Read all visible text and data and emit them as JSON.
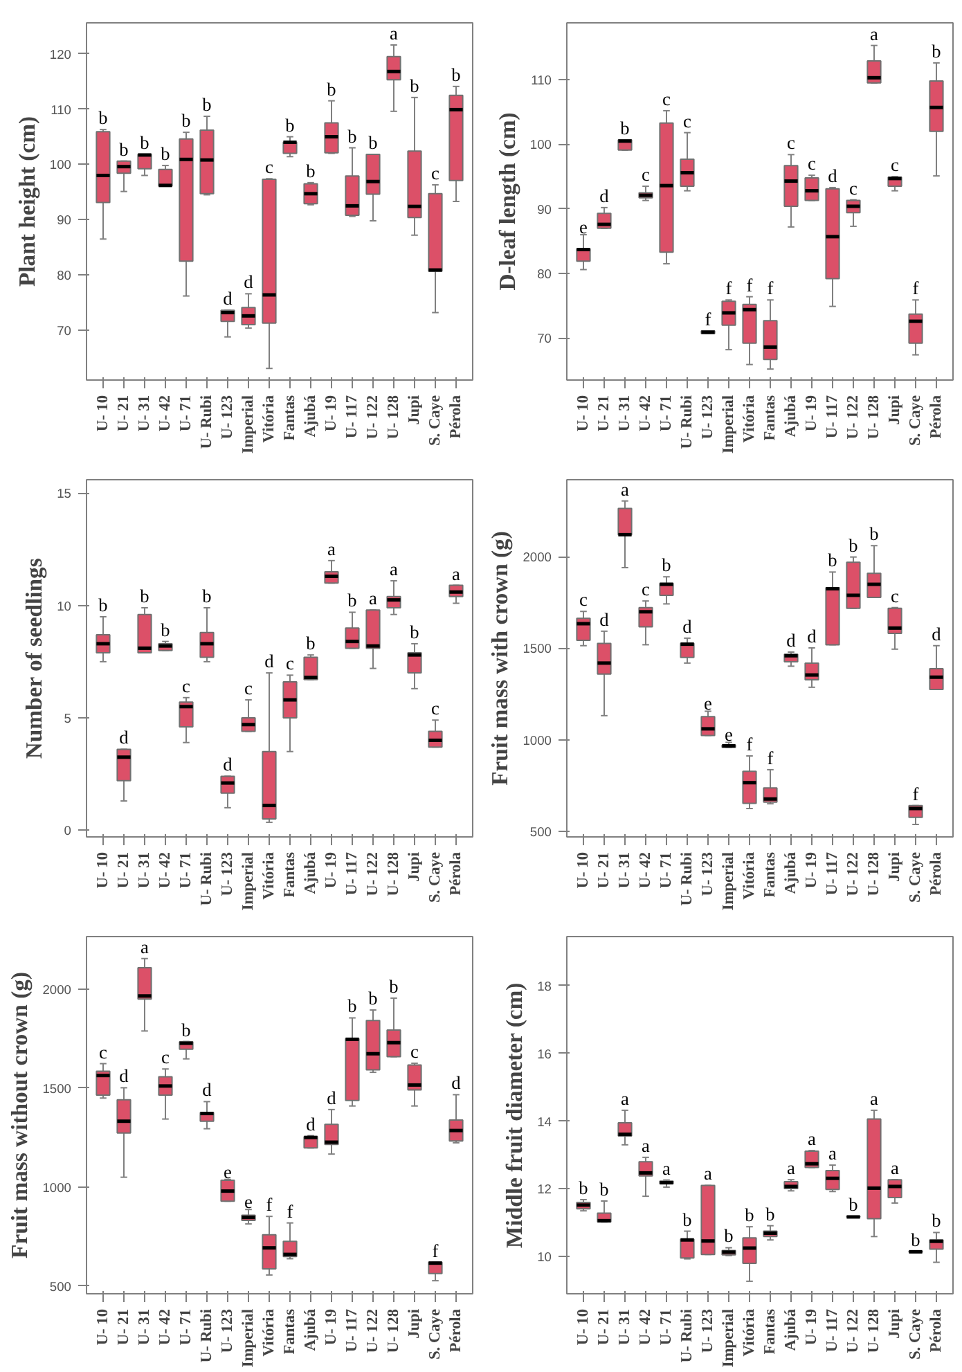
{
  "chart_data": [
    {
      "type": "box",
      "ylabel": "Plant height (cm)",
      "categories": [
        "U- 10",
        "U- 21",
        "U- 31",
        "U- 42",
        "U- 71",
        "U- Rubi",
        "U- 123",
        "Imperial",
        "Vitória",
        "Fantas",
        "Ajubá",
        "U- 19",
        "U- 117",
        "U- 122",
        "U- 128",
        "Jupi",
        "S. Caye",
        "Pérola"
      ],
      "ylim": [
        61,
        125.6
      ],
      "yticks": [
        70,
        80,
        90,
        100,
        110,
        120
      ],
      "annotations": [
        "b",
        "b",
        "b",
        "b",
        "b",
        "b",
        "d",
        "d",
        "c",
        "b",
        "b",
        "b",
        "b",
        "b",
        "a",
        "b",
        "c",
        "b"
      ],
      "series": [
        {
          "color": "#dc5068",
          "boxes": [
            {
              "low": 86.5,
              "q1": 93.1,
              "median": 98,
              "q3": 105.9,
              "high": 106.3
            },
            {
              "low": 95.1,
              "q1": 98.4,
              "median": 99.6,
              "q3": 100.6,
              "high": 100.6
            },
            {
              "low": 98,
              "q1": 99.2,
              "median": 101.7,
              "q3": 101.8,
              "high": 101.8
            },
            {
              "low": 96.1,
              "q1": 96.1,
              "median": 96.2,
              "q3": 99.1,
              "high": 99.8
            },
            {
              "low": 76.2,
              "q1": 82.5,
              "median": 100.9,
              "q3": 104.6,
              "high": 105.8
            },
            {
              "low": 94.5,
              "q1": 94.7,
              "median": 100.8,
              "q3": 106.2,
              "high": 108.7
            },
            {
              "low": 68.8,
              "q1": 71.6,
              "median": 73.2,
              "q3": 73.6,
              "high": 73.6
            },
            {
              "low": 70.4,
              "q1": 71,
              "median": 72.6,
              "q3": 74.1,
              "high": 76.6
            },
            {
              "low": 63.1,
              "q1": 71.3,
              "median": 76.4,
              "q3": 97.3,
              "high": 97.4
            },
            {
              "low": 101.4,
              "q1": 102,
              "median": 104,
              "q3": 104,
              "high": 105
            },
            {
              "low": 92.7,
              "q1": 92.9,
              "median": 94.7,
              "q3": 96.5,
              "high": 96.7
            },
            {
              "low": 102,
              "q1": 102.1,
              "median": 105,
              "q3": 107.5,
              "high": 111.5
            },
            {
              "low": 90.6,
              "q1": 90.8,
              "median": 92.5,
              "q3": 97.9,
              "high": 103
            },
            {
              "low": 89.8,
              "q1": 94.6,
              "median": 96.9,
              "q3": 101.8,
              "high": 101.8
            },
            {
              "low": 109.6,
              "q1": 115.3,
              "median": 116.8,
              "q3": 119.5,
              "high": 121.6
            },
            {
              "low": 87.2,
              "q1": 90.4,
              "median": 92.4,
              "q3": 102.4,
              "high": 112.1
            },
            {
              "low": 73.2,
              "q1": 80.7,
              "median": 80.9,
              "q3": 94.7,
              "high": 96.3
            },
            {
              "low": 93.3,
              "q1": 97.1,
              "median": 109.9,
              "q3": 112.5,
              "high": 114.1
            }
          ]
        }
      ]
    },
    {
      "type": "box",
      "ylabel": "D-leaf length (cm)",
      "categories": [
        "U- 10",
        "U- 21",
        "U- 31",
        "U- 42",
        "U- 71",
        "U- Rubi",
        "U- 123",
        "Imperial",
        "Vitória",
        "Fantas",
        "Ajubá",
        "U- 19",
        "U- 117",
        "U- 122",
        "U- 128",
        "Jupi",
        "S. Caye",
        "Pérola"
      ],
      "ylim": [
        63.5,
        118.8
      ],
      "yticks": [
        70,
        80,
        90,
        100,
        110
      ],
      "annotations": [
        "e",
        "d",
        "b",
        "c",
        "c",
        "c",
        "f",
        "f",
        "f",
        "f",
        "c",
        "c",
        "d",
        "c",
        "a",
        "c",
        "f",
        "b"
      ],
      "series": [
        {
          "color": "#dc5068",
          "boxes": [
            {
              "low": 80.6,
              "q1": 81.9,
              "median": 83.7,
              "q3": 83.8,
              "high": 86
            },
            {
              "low": 87,
              "q1": 87,
              "median": 87.6,
              "q3": 89.3,
              "high": 90.2
            },
            {
              "low": 99.1,
              "q1": 99.1,
              "median": 100.5,
              "q3": 100.7,
              "high": 100.7
            },
            {
              "low": 91.3,
              "q1": 91.7,
              "median": 92.1,
              "q3": 92.5,
              "high": 93.5
            },
            {
              "low": 81.5,
              "q1": 83.3,
              "median": 93.6,
              "q3": 103.3,
              "high": 105.2
            },
            {
              "low": 92.8,
              "q1": 93.5,
              "median": 95.6,
              "q3": 97.7,
              "high": 101.8
            },
            {
              "low": 70.7,
              "q1": 70.7,
              "median": 70.9,
              "q3": 71.1,
              "high": 71.1
            },
            {
              "low": 68.2,
              "q1": 72,
              "median": 73.9,
              "q3": 75.7,
              "high": 75.9
            },
            {
              "low": 65.9,
              "q1": 69.2,
              "median": 74.4,
              "q3": 75.2,
              "high": 76.4
            },
            {
              "low": 65.2,
              "q1": 66.7,
              "median": 68.6,
              "q3": 72.7,
              "high": 75.9
            },
            {
              "low": 87.2,
              "q1": 90.4,
              "median": 94.3,
              "q3": 96.7,
              "high": 98.4
            },
            {
              "low": 91.3,
              "q1": 91.3,
              "median": 92.8,
              "q3": 94.8,
              "high": 95.2
            },
            {
              "low": 74.9,
              "q1": 79.2,
              "median": 85.7,
              "q3": 93.1,
              "high": 93.3
            },
            {
              "low": 87.3,
              "q1": 89.4,
              "median": 90.4,
              "q3": 91.3,
              "high": 91.4
            },
            {
              "low": 109.5,
              "q1": 109.5,
              "median": 110.3,
              "q3": 112.9,
              "high": 115.3
            },
            {
              "low": 92.8,
              "q1": 93.5,
              "median": 94.7,
              "q3": 94.9,
              "high": 95
            },
            {
              "low": 67.4,
              "q1": 69.2,
              "median": 72.6,
              "q3": 73.7,
              "high": 75.9
            },
            {
              "low": 95.1,
              "q1": 102,
              "median": 105.7,
              "q3": 109.8,
              "high": 112.6
            }
          ]
        }
      ]
    },
    {
      "type": "box",
      "ylabel": "Number of seedlings",
      "categories": [
        "U- 10",
        "U- 21",
        "U- 31",
        "U- 42",
        "U- 71",
        "U- Rubi",
        "U- 123",
        "Imperial",
        "Vitória",
        "Fantas",
        "Ajubá",
        "U- 19",
        "U- 117",
        "U- 122",
        "U- 128",
        "Jupi",
        "S. Caye",
        "Pérola"
      ],
      "ylim": [
        -0.3,
        15.6
      ],
      "yticks": [
        0,
        5,
        10,
        15
      ],
      "annotations": [
        "b",
        "d",
        "b",
        "b",
        "c",
        "b",
        "d",
        "c",
        "d",
        "c",
        "b",
        "a",
        "b",
        "a",
        "a",
        "b",
        "c",
        "a"
      ],
      "series": [
        {
          "color": "#dc5068",
          "boxes": [
            {
              "low": 7.5,
              "q1": 7.9,
              "median": 8.3,
              "q3": 8.7,
              "high": 9.5
            },
            {
              "low": 1.3,
              "q1": 2.2,
              "median": 3.25,
              "q3": 3.6,
              "high": 3.6
            },
            {
              "low": 7.9,
              "q1": 7.9,
              "median": 8.1,
              "q3": 9.6,
              "high": 9.9
            },
            {
              "low": 8,
              "q1": 8,
              "median": 8.2,
              "q3": 8.3,
              "high": 8.4
            },
            {
              "low": 3.9,
              "q1": 4.6,
              "median": 5.5,
              "q3": 5.7,
              "high": 5.9
            },
            {
              "low": 7.5,
              "q1": 7.7,
              "median": 8.3,
              "q3": 8.8,
              "high": 9.9
            },
            {
              "low": 1,
              "q1": 1.65,
              "median": 2.1,
              "q3": 2.4,
              "high": 2.4
            },
            {
              "low": 4.4,
              "q1": 4.4,
              "median": 4.7,
              "q3": 5,
              "high": 5.8
            },
            {
              "low": 0.35,
              "q1": 0.5,
              "median": 1.1,
              "q3": 3.5,
              "high": 7
            },
            {
              "low": 3.5,
              "q1": 5,
              "median": 5.8,
              "q3": 6.6,
              "high": 6.9
            },
            {
              "low": 6.7,
              "q1": 6.7,
              "median": 6.8,
              "q3": 7.7,
              "high": 7.8
            },
            {
              "low": 11,
              "q1": 11,
              "median": 11.3,
              "q3": 11.5,
              "high": 12
            },
            {
              "low": 8.1,
              "q1": 8.1,
              "median": 8.4,
              "q3": 9,
              "high": 9.7
            },
            {
              "low": 7.2,
              "q1": 8.1,
              "median": 8.2,
              "q3": 9.8,
              "high": 9.8
            },
            {
              "low": 9.6,
              "q1": 9.9,
              "median": 10.25,
              "q3": 10.4,
              "high": 11.1
            },
            {
              "low": 6.3,
              "q1": 7,
              "median": 7.8,
              "q3": 7.9,
              "high": 8.3
            },
            {
              "low": 3.7,
              "q1": 3.7,
              "median": 4,
              "q3": 4.4,
              "high": 4.9
            },
            {
              "low": 10.1,
              "q1": 10.4,
              "median": 10.6,
              "q3": 10.9,
              "high": 10.9
            }
          ]
        }
      ]
    },
    {
      "type": "box",
      "ylabel": "Fruit mass with crown (g)",
      "categories": [
        "U- 10",
        "U- 21",
        "U- 31",
        "U- 42",
        "U- 71",
        "U- Rubi",
        "U- 123",
        "Imperial",
        "Vitória",
        "Fantas",
        "Ajubá",
        "U- 19",
        "U- 117",
        "U- 122",
        "U- 128",
        "Jupi",
        "S. Caye",
        "Pérola"
      ],
      "ylim": [
        470,
        2420
      ],
      "yticks": [
        500,
        1000,
        1500,
        2000
      ],
      "annotations": [
        "c",
        "d",
        "a",
        "c",
        "b",
        "d",
        "e",
        "e",
        "f",
        "f",
        "d",
        "d",
        "b",
        "b",
        "b",
        "c",
        "f",
        "d"
      ],
      "series": [
        {
          "color": "#dc5068",
          "boxes": [
            {
              "low": 1514,
              "q1": 1543,
              "median": 1634,
              "q3": 1663,
              "high": 1701
            },
            {
              "low": 1132,
              "q1": 1359,
              "median": 1419,
              "q3": 1526,
              "high": 1593
            },
            {
              "low": 1940,
              "q1": 2120,
              "median": 2120,
              "q3": 2263,
              "high": 2304
            },
            {
              "low": 1519,
              "q1": 1617,
              "median": 1699,
              "q3": 1722,
              "high": 1758
            },
            {
              "low": 1742,
              "q1": 1789,
              "median": 1849,
              "q3": 1854,
              "high": 1890
            },
            {
              "low": 1419,
              "q1": 1450,
              "median": 1522,
              "q3": 1526,
              "high": 1555
            },
            {
              "low": 1024,
              "q1": 1024,
              "median": 1060,
              "q3": 1127,
              "high": 1156
            },
            {
              "low": 959,
              "q1": 959,
              "median": 967,
              "q3": 971,
              "high": 986
            },
            {
              "low": 625,
              "q1": 653,
              "median": 766,
              "q3": 828,
              "high": 912
            },
            {
              "low": 651,
              "q1": 660,
              "median": 677,
              "q3": 737,
              "high": 837
            },
            {
              "low": 1402,
              "q1": 1426,
              "median": 1459,
              "q3": 1467,
              "high": 1479
            },
            {
              "low": 1287,
              "q1": 1328,
              "median": 1354,
              "q3": 1419,
              "high": 1502
            },
            {
              "low": 1519,
              "q1": 1519,
              "median": 1825,
              "q3": 1830,
              "high": 1916
            },
            {
              "low": 1718,
              "q1": 1718,
              "median": 1789,
              "q3": 1969,
              "high": 1998
            },
            {
              "low": 1778,
              "q1": 1778,
              "median": 1849,
              "q3": 1909,
              "high": 2060
            },
            {
              "low": 1495,
              "q1": 1581,
              "median": 1610,
              "q3": 1718,
              "high": 1722
            },
            {
              "low": 538,
              "q1": 577,
              "median": 625,
              "q3": 641,
              "high": 641
            },
            {
              "low": 1275,
              "q1": 1275,
              "median": 1342,
              "q3": 1388,
              "high": 1514
            }
          ]
        }
      ]
    },
    {
      "type": "box",
      "ylabel": "Fruit mass without crown (g)",
      "categories": [
        "U- 10",
        "U- 21",
        "U- 31",
        "U- 42",
        "U- 71",
        "U- Rubi",
        "U- 123",
        "Imperial",
        "Vitória",
        "Fantas",
        "Ajubá",
        "U- 19",
        "U- 117",
        "U- 122",
        "U- 128",
        "Jupi",
        "S. Caye",
        "Pérola"
      ],
      "ylim": [
        460,
        2265
      ],
      "yticks": [
        500,
        1000,
        1500,
        2000
      ],
      "annotations": [
        "c",
        "d",
        "a",
        "c",
        "b",
        "d",
        "e",
        "e",
        "f",
        "f",
        "d",
        "d",
        "b",
        "b",
        "b",
        "c",
        "f",
        "d"
      ],
      "series": [
        {
          "color": "#dc5068",
          "boxes": [
            {
              "low": 1449,
              "q1": 1464,
              "median": 1563,
              "q3": 1585,
              "high": 1623
            },
            {
              "low": 1049,
              "q1": 1272,
              "median": 1332,
              "q3": 1440,
              "high": 1501
            },
            {
              "low": 1788,
              "q1": 1949,
              "median": 1965,
              "q3": 2108,
              "high": 2154
            },
            {
              "low": 1343,
              "q1": 1464,
              "median": 1510,
              "q3": 1557,
              "high": 1596
            },
            {
              "low": 1647,
              "q1": 1696,
              "median": 1726,
              "q3": 1733,
              "high": 1735
            },
            {
              "low": 1294,
              "q1": 1332,
              "median": 1371,
              "q3": 1376,
              "high": 1431
            },
            {
              "low": 928,
              "q1": 928,
              "median": 979,
              "q3": 1034,
              "high": 1038
            },
            {
              "low": 813,
              "q1": 831,
              "median": 846,
              "q3": 857,
              "high": 886
            },
            {
              "low": 555,
              "q1": 586,
              "median": 692,
              "q3": 758,
              "high": 851
            },
            {
              "low": 637,
              "q1": 648,
              "median": 659,
              "q3": 725,
              "high": 818
            },
            {
              "low": 1197,
              "q1": 1197,
              "median": 1250,
              "q3": 1254,
              "high": 1259
            },
            {
              "low": 1166,
              "q1": 1215,
              "median": 1226,
              "q3": 1316,
              "high": 1391
            },
            {
              "low": 1409,
              "q1": 1437,
              "median": 1746,
              "q3": 1749,
              "high": 1854
            },
            {
              "low": 1579,
              "q1": 1592,
              "median": 1673,
              "q3": 1841,
              "high": 1894
            },
            {
              "low": 1658,
              "q1": 1658,
              "median": 1729,
              "q3": 1793,
              "high": 1954
            },
            {
              "low": 1409,
              "q1": 1490,
              "median": 1515,
              "q3": 1616,
              "high": 1625
            },
            {
              "low": 526,
              "q1": 562,
              "median": 615,
              "q3": 619,
              "high": 619
            },
            {
              "low": 1223,
              "q1": 1232,
              "median": 1285,
              "q3": 1338,
              "high": 1466
            }
          ]
        }
      ]
    },
    {
      "type": "box",
      "ylabel": "Middle fruit diameter (cm)",
      "categories": [
        "U- 10",
        "U- 21",
        "U- 31",
        "U- 42",
        "U- 71",
        "U- Rubi",
        "U- 123",
        "Imperial",
        "Vitória",
        "Fantas",
        "Ajubá",
        "U- 19",
        "U- 117",
        "U- 122",
        "U- 128",
        "Jupi",
        "S. Caye",
        "Pérola"
      ],
      "ylim": [
        8.9,
        19.45
      ],
      "yticks": [
        10,
        12,
        14,
        16,
        18
      ],
      "annotations": [
        "b",
        "b",
        "a",
        "a",
        "a",
        "b",
        "a",
        "b",
        "b",
        "b",
        "a",
        "a",
        "a",
        "b",
        "a",
        "a",
        "b",
        "b"
      ],
      "series": [
        {
          "color": "#dc5068",
          "boxes": [
            {
              "low": 11.35,
              "q1": 11.41,
              "median": 11.52,
              "q3": 11.6,
              "high": 11.68
            },
            {
              "low": 11.02,
              "q1": 11.02,
              "median": 11.06,
              "q3": 11.28,
              "high": 11.64
            },
            {
              "low": 13.3,
              "q1": 13.56,
              "median": 13.61,
              "q3": 13.95,
              "high": 14.32
            },
            {
              "low": 11.78,
              "q1": 12.38,
              "median": 12.47,
              "q3": 12.8,
              "high": 12.93
            },
            {
              "low": 12.05,
              "q1": 12.15,
              "median": 12.18,
              "q3": 12.23,
              "high": 12.26
            },
            {
              "low": 9.93,
              "q1": 9.96,
              "median": 10.49,
              "q3": 10.51,
              "high": 10.75
            },
            {
              "low": 10.06,
              "q1": 10.06,
              "median": 10.46,
              "q3": 12.1,
              "high": 12.1
            },
            {
              "low": 10.03,
              "q1": 10.05,
              "median": 10.13,
              "q3": 10.18,
              "high": 10.26
            },
            {
              "low": 9.27,
              "q1": 9.8,
              "median": 10.25,
              "q3": 10.55,
              "high": 10.88
            },
            {
              "low": 10.49,
              "q1": 10.59,
              "median": 10.69,
              "q3": 10.75,
              "high": 10.91
            },
            {
              "low": 11.94,
              "q1": 12.01,
              "median": 12.07,
              "q3": 12.21,
              "high": 12.27
            },
            {
              "low": 12.63,
              "q1": 12.63,
              "median": 12.74,
              "q3": 13.11,
              "high": 13.13
            },
            {
              "low": 11.92,
              "q1": 11.98,
              "median": 12.31,
              "q3": 12.54,
              "high": 12.7
            },
            {
              "low": 11.16,
              "q1": 11.17,
              "median": 11.17,
              "q3": 11.18,
              "high": 11.19
            },
            {
              "low": 10.59,
              "q1": 11.12,
              "median": 12.02,
              "q3": 14.06,
              "high": 14.32
            },
            {
              "low": 11.58,
              "q1": 11.74,
              "median": 12.07,
              "q3": 12.27,
              "high": 12.27
            },
            {
              "low": 10.13,
              "q1": 10.13,
              "median": 10.14,
              "q3": 10.15,
              "high": 10.15
            },
            {
              "low": 9.83,
              "q1": 10.22,
              "median": 10.45,
              "q3": 10.49,
              "high": 10.71
            }
          ]
        }
      ]
    }
  ]
}
